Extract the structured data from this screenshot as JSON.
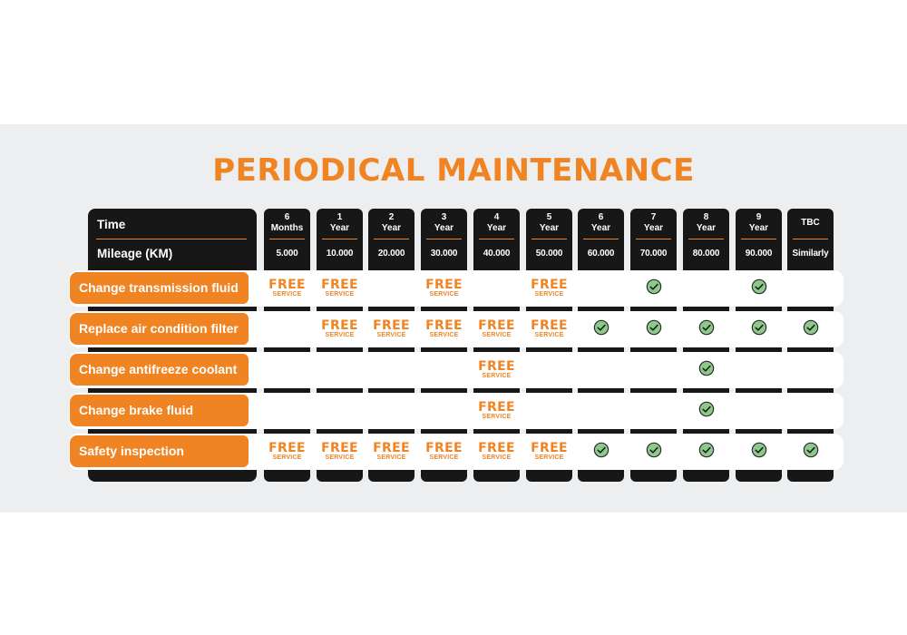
{
  "title": "PERIODICAL MAINTENANCE",
  "labels": {
    "time": "Time",
    "mileage": "Mileage (KM)"
  },
  "free_text": "FREE",
  "service_text": "SERVICE",
  "colors": {
    "accent": "#f08423",
    "dark": "#171717",
    "check_fill": "#8cc98a",
    "panel": "#eceeef"
  },
  "columns": [
    {
      "time_top": "6",
      "time_unit": "Months",
      "km": "5.000"
    },
    {
      "time_top": "1",
      "time_unit": "Year",
      "km": "10.000"
    },
    {
      "time_top": "2",
      "time_unit": "Year",
      "km": "20.000"
    },
    {
      "time_top": "3",
      "time_unit": "Year",
      "km": "30.000"
    },
    {
      "time_top": "4",
      "time_unit": "Year",
      "km": "40.000"
    },
    {
      "time_top": "5",
      "time_unit": "Year",
      "km": "50.000"
    },
    {
      "time_top": "6",
      "time_unit": "Year",
      "km": "60.000"
    },
    {
      "time_top": "7",
      "time_unit": "Year",
      "km": "70.000"
    },
    {
      "time_top": "8",
      "time_unit": "Year",
      "km": "80.000"
    },
    {
      "time_top": "9",
      "time_unit": "Year",
      "km": "90.000"
    },
    {
      "time_top": "TBC",
      "time_unit": "",
      "km": "Similarly"
    }
  ],
  "rows": [
    {
      "label": "Change transmission fluid",
      "cells": [
        "free",
        "free",
        "",
        "free",
        "",
        "free",
        "",
        "check",
        "",
        "check",
        ""
      ]
    },
    {
      "label": "Replace air condition filter",
      "cells": [
        "",
        "free",
        "free",
        "free",
        "free",
        "free",
        "check",
        "check",
        "check",
        "check",
        "check"
      ]
    },
    {
      "label": "Change antifreeze coolant",
      "cells": [
        "",
        "",
        "",
        "",
        "free",
        "",
        "",
        "",
        "check",
        "",
        ""
      ]
    },
    {
      "label": "Change brake fluid",
      "cells": [
        "",
        "",
        "",
        "",
        "free",
        "",
        "",
        "",
        "check",
        "",
        ""
      ]
    },
    {
      "label": "Safety inspection",
      "cells": [
        "free",
        "free",
        "free",
        "free",
        "free",
        "free",
        "check",
        "check",
        "check",
        "check",
        "check"
      ]
    }
  ]
}
